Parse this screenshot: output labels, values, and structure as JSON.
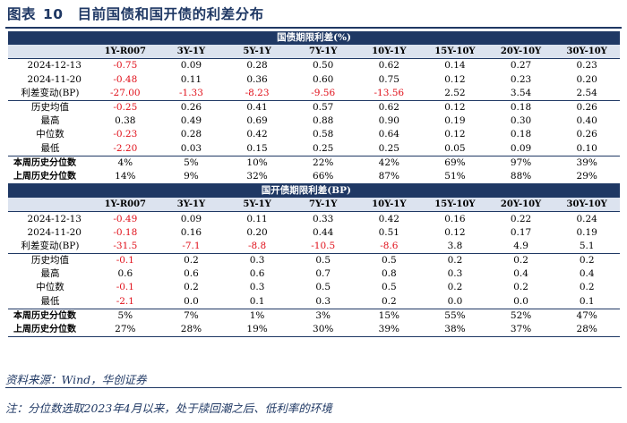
{
  "figure": {
    "label": "图表",
    "number": "10",
    "caption": "目前国债和国开债的利差分布"
  },
  "columns": [
    "1Y-R007",
    "3Y-1Y",
    "5Y-1Y",
    "7Y-1Y",
    "10Y-1Y",
    "15Y-10Y",
    "20Y-10Y",
    "30Y-10Y"
  ],
  "section1": {
    "title": "国债期限利差(%)",
    "rows": [
      {
        "label": "2024-12-13",
        "values": [
          "-0.75",
          "0.09",
          "0.28",
          "0.50",
          "0.62",
          "0.14",
          "0.27",
          "0.23"
        ]
      },
      {
        "label": "2024-11-20",
        "values": [
          "-0.48",
          "0.11",
          "0.36",
          "0.60",
          "0.75",
          "0.12",
          "0.23",
          "0.20"
        ]
      },
      {
        "label": "利差变动(BP)",
        "values": [
          "-27.00",
          "-1.33",
          "-8.23",
          "-9.56",
          "-13.56",
          "2.52",
          "3.54",
          "2.54"
        ]
      },
      {
        "label": "历史均值",
        "values": [
          "-0.25",
          "0.26",
          "0.41",
          "0.57",
          "0.62",
          "0.12",
          "0.18",
          "0.26"
        ]
      },
      {
        "label": "最高",
        "values": [
          "0.38",
          "0.49",
          "0.69",
          "0.88",
          "0.90",
          "0.19",
          "0.30",
          "0.40"
        ]
      },
      {
        "label": "中位数",
        "values": [
          "-0.23",
          "0.28",
          "0.42",
          "0.58",
          "0.64",
          "0.12",
          "0.18",
          "0.26"
        ]
      },
      {
        "label": "最低",
        "values": [
          "-2.20",
          "0.03",
          "0.15",
          "0.25",
          "0.25",
          "0.05",
          "0.09",
          "0.10"
        ]
      },
      {
        "label": "本周历史分位数",
        "values": [
          "4%",
          "5%",
          "10%",
          "22%",
          "42%",
          "69%",
          "97%",
          "39%"
        ]
      },
      {
        "label": "上周历史分位数",
        "values": [
          "14%",
          "9%",
          "32%",
          "66%",
          "87%",
          "51%",
          "88%",
          "29%"
        ]
      }
    ]
  },
  "section2": {
    "title": "国开债期限利差(BP)",
    "rows": [
      {
        "label": "2024-12-13",
        "values": [
          "-0.49",
          "0.09",
          "0.11",
          "0.33",
          "0.42",
          "0.16",
          "0.22",
          "0.24"
        ]
      },
      {
        "label": "2024-11-20",
        "values": [
          "-0.18",
          "0.16",
          "0.20",
          "0.44",
          "0.51",
          "0.12",
          "0.17",
          "0.19"
        ]
      },
      {
        "label": "利差变动(BP)",
        "values": [
          "-31.5",
          "-7.1",
          "-8.8",
          "-10.5",
          "-8.6",
          "3.8",
          "4.9",
          "5.1"
        ]
      },
      {
        "label": "历史均值",
        "values": [
          "-0.1",
          "0.2",
          "0.3",
          "0.5",
          "0.5",
          "0.2",
          "0.2",
          "0.2"
        ]
      },
      {
        "label": "最高",
        "values": [
          "0.6",
          "0.6",
          "0.6",
          "0.7",
          "0.8",
          "0.3",
          "0.4",
          "0.4"
        ]
      },
      {
        "label": "中位数",
        "values": [
          "-0.1",
          "0.2",
          "0.3",
          "0.5",
          "0.5",
          "0.2",
          "0.2",
          "0.2"
        ]
      },
      {
        "label": "最低",
        "values": [
          "-2.1",
          "0.0",
          "0.1",
          "0.3",
          "0.2",
          "0.0",
          "0.0",
          "0.1"
        ]
      },
      {
        "label": "本周历史分位数",
        "values": [
          "5%",
          "7%",
          "1%",
          "3%",
          "15%",
          "55%",
          "52%",
          "47%"
        ]
      },
      {
        "label": "上周历史分位数",
        "values": [
          "27%",
          "28%",
          "19%",
          "30%",
          "39%",
          "38%",
          "37%",
          "28%"
        ]
      }
    ]
  },
  "source": "资料来源：Wind，华创证券",
  "note": "注：分位数选取2023年4月以来，处于牍回潮之后、低利率的环境",
  "colors": {
    "navy": "#1f3864",
    "header_fill": "#dce3ef",
    "negative": "#e0101a"
  }
}
